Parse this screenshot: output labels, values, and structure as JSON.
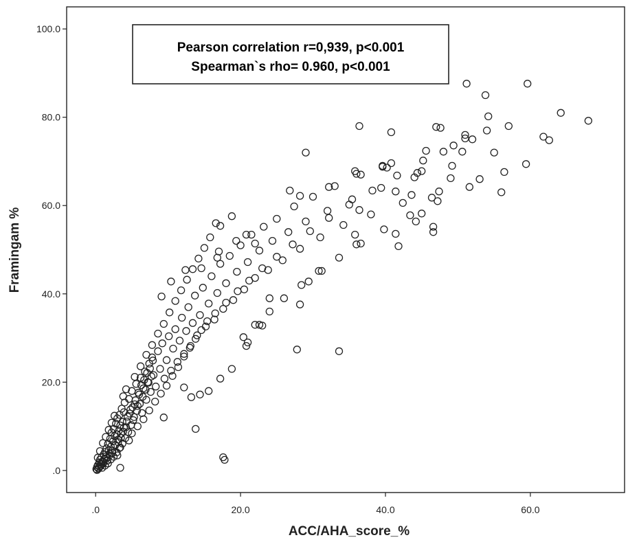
{
  "chart_data": {
    "type": "scatter",
    "xlabel": "ACC/AHA_score_%",
    "ylabel": "Framingam %",
    "xlim": [
      -4,
      73
    ],
    "ylim": [
      -5,
      105
    ],
    "x_ticks": [
      {
        "value": 0,
        "label": ".0"
      },
      {
        "value": 20,
        "label": "20.0"
      },
      {
        "value": 40,
        "label": "40.0"
      },
      {
        "value": 60,
        "label": "60.0"
      }
    ],
    "y_ticks": [
      {
        "value": 0,
        "label": ".0"
      },
      {
        "value": 20,
        "label": "20.0"
      },
      {
        "value": 40,
        "label": "40.0"
      },
      {
        "value": 60,
        "label": "60.0"
      },
      {
        "value": 80,
        "label": "80.0"
      },
      {
        "value": 100,
        "label": "100.0"
      }
    ],
    "grid": false,
    "annotation": {
      "line1": "Pearson correlation r=0,939, p<0.001",
      "line2": "Spearman`s rho= 0.960, p<0.001"
    },
    "marker": {
      "shape": "open-circle",
      "color": "#222222"
    },
    "series": [
      {
        "points": [
          [
            0.1,
            0.3
          ],
          [
            0.2,
            0.8
          ],
          [
            0.3,
            1.2
          ],
          [
            0.4,
            0.5
          ],
          [
            0.5,
            1.8
          ],
          [
            0.6,
            2.4
          ],
          [
            0.7,
            1.0
          ],
          [
            0.8,
            3.0
          ],
          [
            0.9,
            2.0
          ],
          [
            1.0,
            1.5
          ],
          [
            1.1,
            3.6
          ],
          [
            1.2,
            2.6
          ],
          [
            1.3,
            4.2
          ],
          [
            1.4,
            3.2
          ],
          [
            1.5,
            5.0
          ],
          [
            1.6,
            2.2
          ],
          [
            1.7,
            6.0
          ],
          [
            1.8,
            4.6
          ],
          [
            1.9,
            3.8
          ],
          [
            2.0,
            7.2
          ],
          [
            2.1,
            5.4
          ],
          [
            2.2,
            8.6
          ],
          [
            2.3,
            4.0
          ],
          [
            2.4,
            6.6
          ],
          [
            2.5,
            9.4
          ],
          [
            2.6,
            7.8
          ],
          [
            2.7,
            5.8
          ],
          [
            2.8,
            10.6
          ],
          [
            2.9,
            8.2
          ],
          [
            3.0,
            11.8
          ],
          [
            3.1,
            6.4
          ],
          [
            3.2,
            9.0
          ],
          [
            3.3,
            12.6
          ],
          [
            3.4,
            10.2
          ],
          [
            3.5,
            7.4
          ],
          [
            3.6,
            14.0
          ],
          [
            3.7,
            11.0
          ],
          [
            3.8,
            8.8
          ],
          [
            3.9,
            13.2
          ],
          [
            4.0,
            15.4
          ],
          [
            4.2,
            9.8
          ],
          [
            4.4,
            12.2
          ],
          [
            4.6,
            16.2
          ],
          [
            4.8,
            13.8
          ],
          [
            5.0,
            18.0
          ],
          [
            5.2,
            11.4
          ],
          [
            5.4,
            15.0
          ],
          [
            5.6,
            19.6
          ],
          [
            5.8,
            14.6
          ],
          [
            6.0,
            17.2
          ],
          [
            6.2,
            21.0
          ],
          [
            6.4,
            13.0
          ],
          [
            6.6,
            18.6
          ],
          [
            6.8,
            22.4
          ],
          [
            7.0,
            16.0
          ],
          [
            7.2,
            20.0
          ],
          [
            7.4,
            24.2
          ],
          [
            7.6,
            17.8
          ],
          [
            7.8,
            25.6
          ],
          [
            8.0,
            21.6
          ],
          [
            8.3,
            19.0
          ],
          [
            8.6,
            27.0
          ],
          [
            8.9,
            23.0
          ],
          [
            9.2,
            28.8
          ],
          [
            9.5,
            20.8
          ],
          [
            9.8,
            25.0
          ],
          [
            10.1,
            30.4
          ],
          [
            10.4,
            22.6
          ],
          [
            10.7,
            27.6
          ],
          [
            11.0,
            32.0
          ],
          [
            11.3,
            24.6
          ],
          [
            11.6,
            29.4
          ],
          [
            11.9,
            34.6
          ],
          [
            12.2,
            26.4
          ],
          [
            12.5,
            31.6
          ],
          [
            12.8,
            37.0
          ],
          [
            13.1,
            28.2
          ],
          [
            13.4,
            33.4
          ],
          [
            13.7,
            39.6
          ],
          [
            14.0,
            30.6
          ],
          [
            14.4,
            35.2
          ],
          [
            14.8,
            41.4
          ],
          [
            15.2,
            32.6
          ],
          [
            15.6,
            37.8
          ],
          [
            16.0,
            44.0
          ],
          [
            16.4,
            34.2
          ],
          [
            16.8,
            40.2
          ],
          [
            17.2,
            46.8
          ],
          [
            17.6,
            36.6
          ],
          [
            18.0,
            42.4
          ],
          [
            18.5,
            48.6
          ],
          [
            19.0,
            38.6
          ],
          [
            19.5,
            45.0
          ],
          [
            20.0,
            51.0
          ],
          [
            20.5,
            41.0
          ],
          [
            21.0,
            47.2
          ],
          [
            21.5,
            53.4
          ],
          [
            22.0,
            43.6
          ],
          [
            22.6,
            49.8
          ],
          [
            23.2,
            55.2
          ],
          [
            23.8,
            45.4
          ],
          [
            24.4,
            52.0
          ],
          [
            25.0,
            57.0
          ],
          [
            25.8,
            47.6
          ],
          [
            26.6,
            54.0
          ],
          [
            27.4,
            59.8
          ],
          [
            28.2,
            50.2
          ],
          [
            29.0,
            56.4
          ],
          [
            30.0,
            62.0
          ],
          [
            31.0,
            52.8
          ],
          [
            32.0,
            58.8
          ],
          [
            33.0,
            64.4
          ],
          [
            34.2,
            55.6
          ],
          [
            35.4,
            61.4
          ],
          [
            36.6,
            67.0
          ],
          [
            38.0,
            58.0
          ],
          [
            39.4,
            64.0
          ],
          [
            40.8,
            69.6
          ],
          [
            42.4,
            60.6
          ],
          [
            44.0,
            66.4
          ],
          [
            45.6,
            72.4
          ],
          [
            47.4,
            63.2
          ],
          [
            49.2,
            69.0
          ],
          [
            51.0,
            75.2
          ],
          [
            53.0,
            66.0
          ],
          [
            55.0,
            72.0
          ],
          [
            57.0,
            78.0
          ],
          [
            59.4,
            69.4
          ],
          [
            61.8,
            75.6
          ],
          [
            64.2,
            81.0
          ],
          [
            0.3,
            2.9
          ],
          [
            0.6,
            4.4
          ],
          [
            1.0,
            6.2
          ],
          [
            1.4,
            7.6
          ],
          [
            1.8,
            9.2
          ],
          [
            2.2,
            10.8
          ],
          [
            2.6,
            12.4
          ],
          [
            3.0,
            3.4
          ],
          [
            3.4,
            5.2
          ],
          [
            3.8,
            16.8
          ],
          [
            4.2,
            18.4
          ],
          [
            4.6,
            6.8
          ],
          [
            5.0,
            8.4
          ],
          [
            5.4,
            21.2
          ],
          [
            5.8,
            10.0
          ],
          [
            6.2,
            23.6
          ],
          [
            6.6,
            11.6
          ],
          [
            7.0,
            26.2
          ],
          [
            7.4,
            13.6
          ],
          [
            7.8,
            28.4
          ],
          [
            8.2,
            15.6
          ],
          [
            8.6,
            31.0
          ],
          [
            9.0,
            17.4
          ],
          [
            9.4,
            33.2
          ],
          [
            9.8,
            19.2
          ],
          [
            10.2,
            35.8
          ],
          [
            10.6,
            21.4
          ],
          [
            11.0,
            38.4
          ],
          [
            11.4,
            23.4
          ],
          [
            11.8,
            40.8
          ],
          [
            12.2,
            25.8
          ],
          [
            12.6,
            43.2
          ],
          [
            13.0,
            27.8
          ],
          [
            13.4,
            45.6
          ],
          [
            13.8,
            29.8
          ],
          [
            14.2,
            48.0
          ],
          [
            14.6,
            31.8
          ],
          [
            15.0,
            50.4
          ],
          [
            15.4,
            33.8
          ],
          [
            15.8,
            52.8
          ],
          [
            16.5,
            35.6
          ],
          [
            17.2,
            55.4
          ],
          [
            18.0,
            38.0
          ],
          [
            18.8,
            57.6
          ],
          [
            19.6,
            40.6
          ],
          [
            20.4,
            30.2
          ],
          [
            21.2,
            43.0
          ],
          [
            22.0,
            33.0
          ],
          [
            23.0,
            45.8
          ],
          [
            24.0,
            36.0
          ],
          [
            25.0,
            48.4
          ],
          [
            26.0,
            39.0
          ],
          [
            27.2,
            51.2
          ],
          [
            28.4,
            42.0
          ],
          [
            29.6,
            54.2
          ],
          [
            30.8,
            45.2
          ],
          [
            32.2,
            57.2
          ],
          [
            33.6,
            48.2
          ],
          [
            35.0,
            60.2
          ],
          [
            36.6,
            51.4
          ],
          [
            38.2,
            63.4
          ],
          [
            39.8,
            54.6
          ],
          [
            41.6,
            66.8
          ],
          [
            43.4,
            57.8
          ],
          [
            45.2,
            70.2
          ],
          [
            47.2,
            61.0
          ],
          [
            49.4,
            73.6
          ],
          [
            51.6,
            64.2
          ],
          [
            54.0,
            77.0
          ],
          [
            56.4,
            67.6
          ],
          [
            17.6,
            3.0
          ],
          [
            17.8,
            2.4
          ],
          [
            13.8,
            9.4
          ],
          [
            27.8,
            27.4
          ],
          [
            33.6,
            27.0
          ],
          [
            3.4,
            0.6
          ],
          [
            9.4,
            12.0
          ],
          [
            13.2,
            16.6
          ],
          [
            21.0,
            29.0
          ],
          [
            12.2,
            18.8
          ],
          [
            0.2,
            0.1
          ],
          [
            0.4,
            0.4
          ],
          [
            0.5,
            0.9
          ],
          [
            0.7,
            1.4
          ],
          [
            0.9,
            0.6
          ],
          [
            1.1,
            1.9
          ],
          [
            1.3,
            1.1
          ],
          [
            1.5,
            2.8
          ],
          [
            1.7,
            1.6
          ],
          [
            1.9,
            3.4
          ],
          [
            2.1,
            2.5
          ],
          [
            2.3,
            4.5
          ],
          [
            2.5,
            3.1
          ],
          [
            2.7,
            5.7
          ],
          [
            2.9,
            4.1
          ],
          [
            3.1,
            7.0
          ],
          [
            3.3,
            5.1
          ],
          [
            3.5,
            8.3
          ],
          [
            3.7,
            6.1
          ],
          [
            3.9,
            9.7
          ],
          [
            4.1,
            7.3
          ],
          [
            4.3,
            11.1
          ],
          [
            4.5,
            8.7
          ],
          [
            4.7,
            12.9
          ],
          [
            4.9,
            10.3
          ],
          [
            5.1,
            14.3
          ],
          [
            5.3,
            12.1
          ],
          [
            5.5,
            15.9
          ],
          [
            5.7,
            13.5
          ],
          [
            5.9,
            17.6
          ],
          [
            6.1,
            15.1
          ],
          [
            6.3,
            19.3
          ],
          [
            6.5,
            16.7
          ],
          [
            6.7,
            20.5
          ],
          [
            6.9,
            18.3
          ],
          [
            7.1,
            22.1
          ],
          [
            7.3,
            19.9
          ],
          [
            7.5,
            23.1
          ],
          [
            7.7,
            21.3
          ],
          [
            7.9,
            24.9
          ],
          [
            16.6,
            56.0
          ],
          [
            10.4,
            42.8
          ],
          [
            9.1,
            39.4
          ],
          [
            12.4,
            45.4
          ],
          [
            14.6,
            45.8
          ],
          [
            16.8,
            48.2
          ],
          [
            17.0,
            49.6
          ],
          [
            19.4,
            52.0
          ],
          [
            20.8,
            53.4
          ],
          [
            22.0,
            51.4
          ],
          [
            29.0,
            72.0
          ],
          [
            36.4,
            78.0
          ],
          [
            40.8,
            76.6
          ],
          [
            26.8,
            63.4
          ],
          [
            28.2,
            62.2
          ],
          [
            32.2,
            64.2
          ],
          [
            35.8,
            67.8
          ],
          [
            39.6,
            68.8
          ],
          [
            41.4,
            63.2
          ],
          [
            43.6,
            62.4
          ],
          [
            44.2,
            56.4
          ],
          [
            45.0,
            58.2
          ],
          [
            46.4,
            61.8
          ],
          [
            46.6,
            55.2
          ],
          [
            46.6,
            54.0
          ],
          [
            48.0,
            72.2
          ],
          [
            47.0,
            77.8
          ],
          [
            47.6,
            77.6
          ],
          [
            50.6,
            72.2
          ],
          [
            51.0,
            76.0
          ],
          [
            51.2,
            87.6
          ],
          [
            53.8,
            85.0
          ],
          [
            54.2,
            80.2
          ],
          [
            52.0,
            75.0
          ],
          [
            56.0,
            63.0
          ],
          [
            59.6,
            87.6
          ],
          [
            62.6,
            74.8
          ],
          [
            68.0,
            79.2
          ],
          [
            49.0,
            66.2
          ],
          [
            44.4,
            67.4
          ],
          [
            45.0,
            67.8
          ],
          [
            39.6,
            69.0
          ],
          [
            40.2,
            68.6
          ],
          [
            36.0,
            67.2
          ],
          [
            36.4,
            59.0
          ],
          [
            35.8,
            53.4
          ],
          [
            36.0,
            51.2
          ],
          [
            41.4,
            53.6
          ],
          [
            41.8,
            50.8
          ],
          [
            31.2,
            45.2
          ],
          [
            29.4,
            42.8
          ],
          [
            28.2,
            37.6
          ],
          [
            24.0,
            39.0
          ],
          [
            22.6,
            33.0
          ],
          [
            23.0,
            32.8
          ],
          [
            20.8,
            28.2
          ],
          [
            18.8,
            23.0
          ],
          [
            17.2,
            20.8
          ],
          [
            15.6,
            18.0
          ],
          [
            14.4,
            17.2
          ]
        ]
      }
    ]
  }
}
